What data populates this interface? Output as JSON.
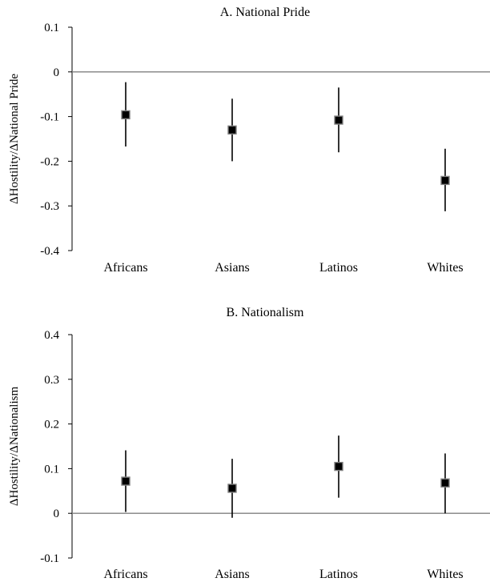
{
  "chart_data": [
    {
      "type": "scatter",
      "subtype": "point-estimate-with-error-bars",
      "title": "A. National Pride",
      "ylabel": "ΔHostility/ΔNational Pride",
      "xlabel": "",
      "categories": [
        "Africans",
        "Asians",
        "Latinos",
        "Whites"
      ],
      "values": [
        -0.096,
        -0.13,
        -0.108,
        -0.243
      ],
      "ci_low": [
        -0.167,
        -0.2,
        -0.18,
        -0.312
      ],
      "ci_high": [
        -0.023,
        -0.06,
        -0.035,
        -0.172
      ],
      "ylim": [
        -0.4,
        0.1
      ],
      "yticks": [
        0.1,
        0,
        -0.1,
        -0.2,
        -0.3,
        -0.4
      ],
      "ytick_labels": [
        "0.1",
        "0",
        "-0.1",
        "-0.2",
        "-0.3",
        "-0.4"
      ],
      "zero_line": true,
      "grid": false
    },
    {
      "type": "scatter",
      "subtype": "point-estimate-with-error-bars",
      "title": "B. Nationalism",
      "ylabel": "ΔHostility/ΔNationalism",
      "xlabel": "",
      "categories": [
        "Africans",
        "Asians",
        "Latinos",
        "Whites"
      ],
      "values": [
        0.072,
        0.056,
        0.105,
        0.068
      ],
      "ci_low": [
        0.003,
        -0.01,
        0.035,
        0.0
      ],
      "ci_high": [
        0.141,
        0.122,
        0.174,
        0.134
      ],
      "ylim": [
        -0.1,
        0.4
      ],
      "yticks": [
        0.4,
        0.3,
        0.2,
        0.1,
        0,
        -0.1
      ],
      "ytick_labels": [
        "0.4",
        "0.3",
        "0.2",
        "0.1",
        "0",
        "-0.1"
      ],
      "zero_line": true,
      "grid": false
    }
  ],
  "colors": {
    "axis": "#000000",
    "zero_line": "#808080",
    "marker_fill": "#000000",
    "marker_stroke": "#808080",
    "error_bar": "#000000"
  }
}
